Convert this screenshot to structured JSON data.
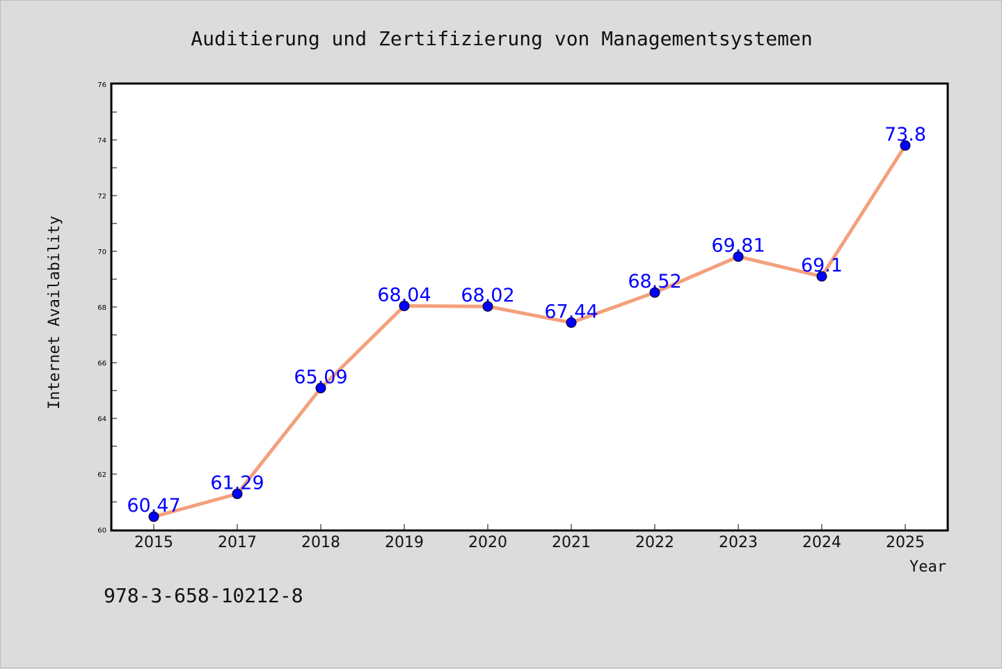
{
  "chart_data": {
    "type": "line",
    "title": "Auditierung und Zertifizierung von Managementsystemen",
    "xlabel": "Year",
    "ylabel": "Internet Availability",
    "categories": [
      "2015",
      "2017",
      "2018",
      "2019",
      "2020",
      "2021",
      "2022",
      "2023",
      "2024",
      "2025"
    ],
    "values": [
      60.47,
      61.29,
      65.09,
      68.04,
      68.02,
      67.44,
      68.52,
      69.81,
      69.1,
      73.8
    ],
    "data_labels": [
      "60.47",
      "61.29",
      "65.09",
      "68.04",
      "68.02",
      "67.44",
      "68.52",
      "69.81",
      "69.1",
      "73.8"
    ],
    "ylim": [
      60,
      76
    ],
    "yticks": [
      60,
      62,
      64,
      66,
      68,
      70,
      72,
      74,
      76
    ],
    "grid": false,
    "line_color": "#f4a07c",
    "marker_color": "#0000ff",
    "label_color": "#0000ff",
    "background_color": "#dcdcdc",
    "plot_background": "#ffffff"
  },
  "footer_text": "978-3-658-10212-8"
}
